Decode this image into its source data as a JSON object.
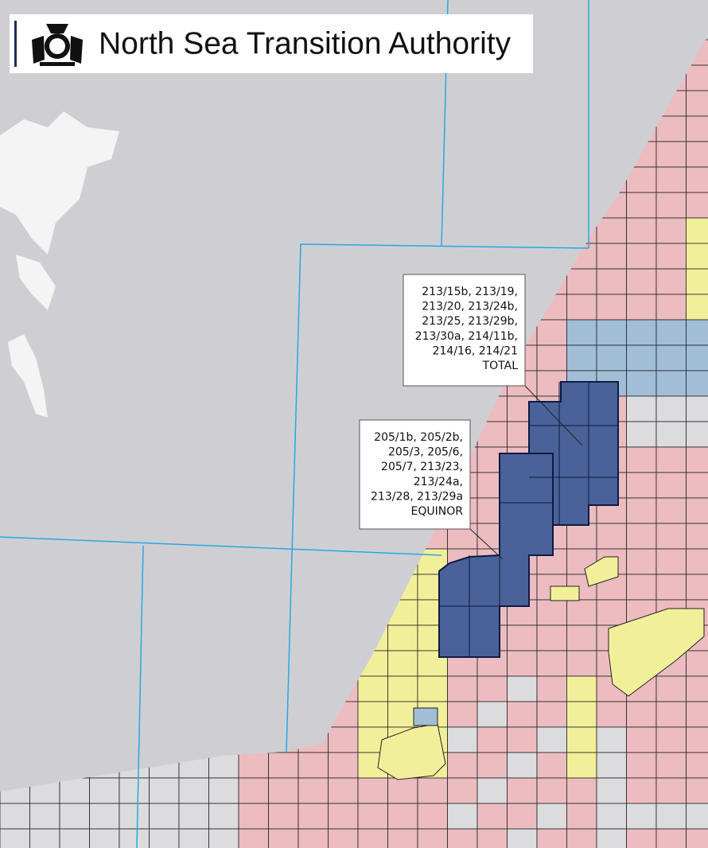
{
  "header": {
    "title": "North Sea Transition Authority"
  },
  "callouts": [
    {
      "lines": [
        "213/15b, 213/19,",
        "213/20, 213/24b,",
        "213/25, 213/29b,",
        "213/30a, 214/11b,",
        "214/16, 214/21"
      ],
      "operator": "TOTAL"
    },
    {
      "lines": [
        "205/1b, 205/2b,",
        "205/3, 205/6,",
        "205/7, 213/23,",
        "213/24a,",
        "213/28, 213/29a"
      ],
      "operator": "EQUINOR"
    }
  ]
}
